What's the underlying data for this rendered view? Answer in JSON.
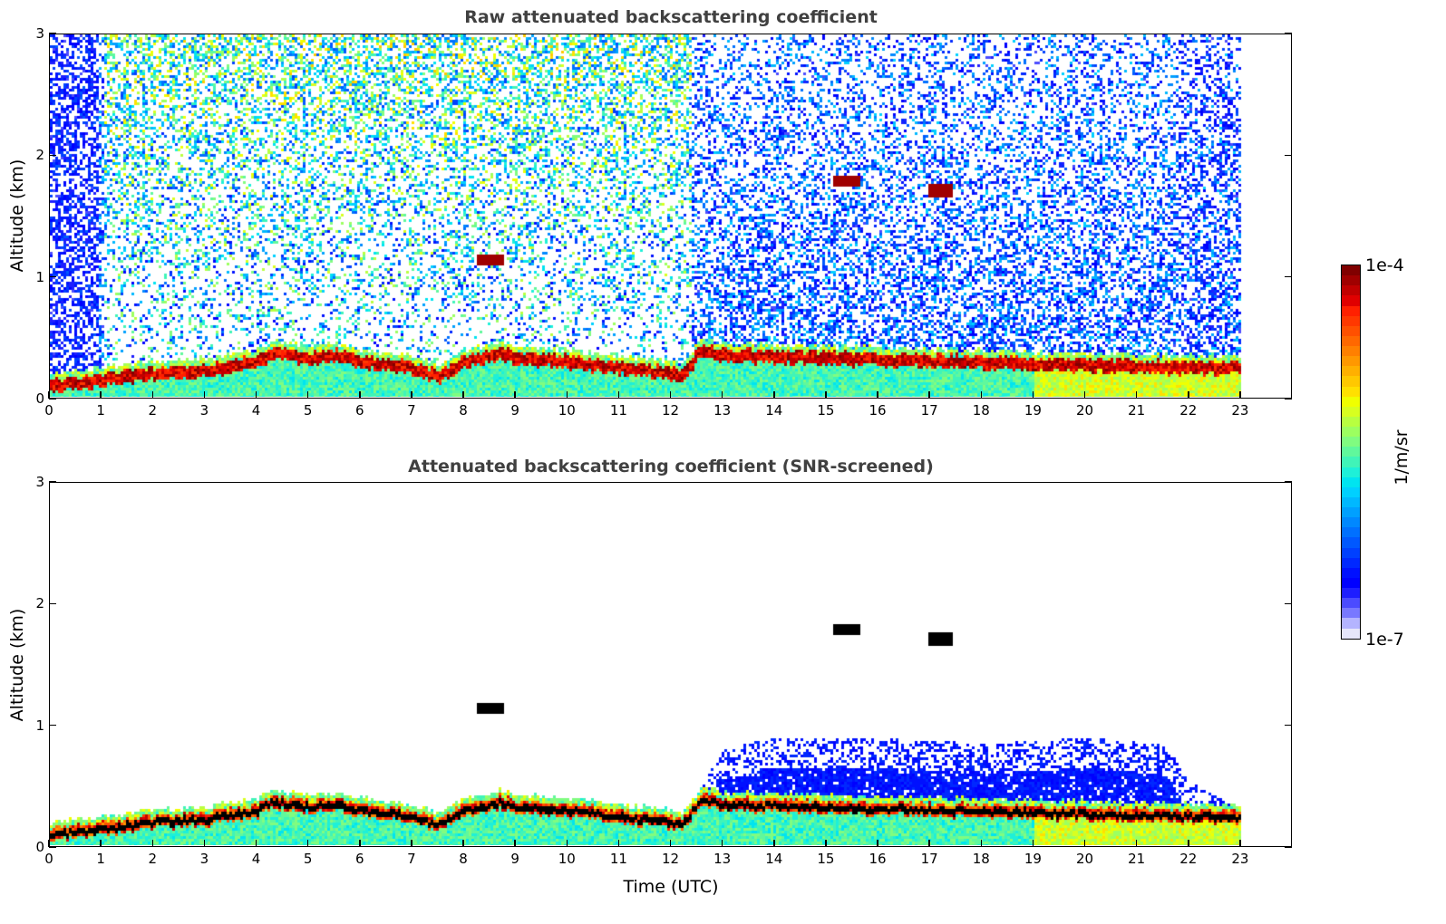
{
  "chart_data": [
    {
      "type": "heatmap",
      "title": "Raw attenuated backscattering coefficient",
      "xlabel": "",
      "ylabel": "Altitude (km)",
      "xlim": [
        0,
        24
      ],
      "ylim": [
        0,
        3
      ],
      "x_ticks": [
        "0",
        "1",
        "2",
        "3",
        "4",
        "5",
        "6",
        "7",
        "8",
        "9",
        "10",
        "11",
        "12",
        "13",
        "14",
        "15",
        "16",
        "17",
        "18",
        "19",
        "20",
        "21",
        "22",
        "23"
      ],
      "y_ticks": [
        "0",
        "1",
        "2",
        "3"
      ],
      "data_time_range": [
        0,
        23
      ],
      "colormap": "jet",
      "color_scale": "log",
      "features": {
        "aerosol_layer_top_km": [
          [
            0,
            0.15
          ],
          [
            1,
            0.2
          ],
          [
            2,
            0.25
          ],
          [
            3,
            0.28
          ],
          [
            4,
            0.35
          ],
          [
            4.3,
            0.42
          ],
          [
            5,
            0.38
          ],
          [
            5.5,
            0.4
          ],
          [
            6,
            0.35
          ],
          [
            7,
            0.3
          ],
          [
            7.5,
            0.22
          ],
          [
            8,
            0.35
          ],
          [
            8.7,
            0.42
          ],
          [
            9,
            0.38
          ],
          [
            10,
            0.35
          ],
          [
            11,
            0.3
          ],
          [
            12,
            0.25
          ],
          [
            12.2,
            0.22
          ],
          [
            12.6,
            0.45
          ],
          [
            13,
            0.4
          ],
          [
            22,
            0.3
          ],
          [
            23,
            0.3
          ]
        ],
        "clouds": [
          {
            "time": 8.5,
            "altitude_km": 1.15
          },
          {
            "time": 15.4,
            "altitude_km": 1.8
          },
          {
            "time": 17.2,
            "altitude_km": 1.72
          }
        ]
      }
    },
    {
      "type": "heatmap",
      "title": "Attenuated backscattering coefficient (SNR-screened)",
      "xlabel": "Time (UTC)",
      "ylabel": "Altitude (km)",
      "xlim": [
        0,
        24
      ],
      "ylim": [
        0,
        3
      ],
      "x_ticks": [
        "0",
        "1",
        "2",
        "3",
        "4",
        "5",
        "6",
        "7",
        "8",
        "9",
        "10",
        "11",
        "12",
        "13",
        "14",
        "15",
        "16",
        "17",
        "18",
        "19",
        "20",
        "21",
        "22",
        "23"
      ],
      "y_ticks": [
        "0",
        "1",
        "2",
        "3"
      ],
      "data_time_range": [
        0,
        23
      ],
      "colormap": "jet",
      "color_scale": "log",
      "features": {
        "aerosol_layer_top_km": [
          [
            0,
            0.15
          ],
          [
            1,
            0.2
          ],
          [
            2,
            0.25
          ],
          [
            3,
            0.3
          ],
          [
            4,
            0.38
          ],
          [
            4.3,
            0.45
          ],
          [
            5,
            0.4
          ],
          [
            5.5,
            0.43
          ],
          [
            6,
            0.38
          ],
          [
            7,
            0.33
          ],
          [
            7.5,
            0.25
          ],
          [
            8,
            0.38
          ],
          [
            8.7,
            0.45
          ],
          [
            9,
            0.42
          ],
          [
            10,
            0.38
          ],
          [
            11,
            0.33
          ],
          [
            12,
            0.28
          ],
          [
            12.2,
            0.22
          ],
          [
            12.6,
            0.5
          ],
          [
            13,
            0.8
          ],
          [
            14,
            0.9
          ],
          [
            16,
            0.9
          ],
          [
            18,
            0.85
          ],
          [
            20,
            0.9
          ],
          [
            21.5,
            0.85
          ],
          [
            21.8,
            0.7
          ],
          [
            22,
            0.55
          ],
          [
            23,
            0.3
          ]
        ],
        "clouds": [
          {
            "time": 8.5,
            "altitude_km": 1.15
          },
          {
            "time": 15.4,
            "altitude_km": 1.8
          },
          {
            "time": 17.2,
            "altitude_km": 1.72
          }
        ]
      }
    }
  ],
  "colorbar": {
    "label": "1/m/sr",
    "max_label": "1e-4",
    "min_label": "1e-7",
    "min": 1e-07,
    "max": 0.0001,
    "colors": [
      "#e6e6fa",
      "#b4b4ff",
      "#7878ff",
      "#4b4bff",
      "#1e1eff",
      "#0000ff",
      "#0010ff",
      "#0028ff",
      "#0040ff",
      "#0058ff",
      "#0070ff",
      "#0088ff",
      "#00a0ff",
      "#00b8ff",
      "#00d0ff",
      "#00e4f0",
      "#1ef0d8",
      "#40f4b8",
      "#60f89c",
      "#80fc80",
      "#9cff60",
      "#b8ff40",
      "#d8ff20",
      "#f0ff00",
      "#ffe000",
      "#ffc800",
      "#ffb000",
      "#ff9800",
      "#ff8000",
      "#ff6800",
      "#ff5000",
      "#ff3800",
      "#ff2000",
      "#e00000",
      "#c00000",
      "#a00000",
      "#800000"
    ]
  }
}
